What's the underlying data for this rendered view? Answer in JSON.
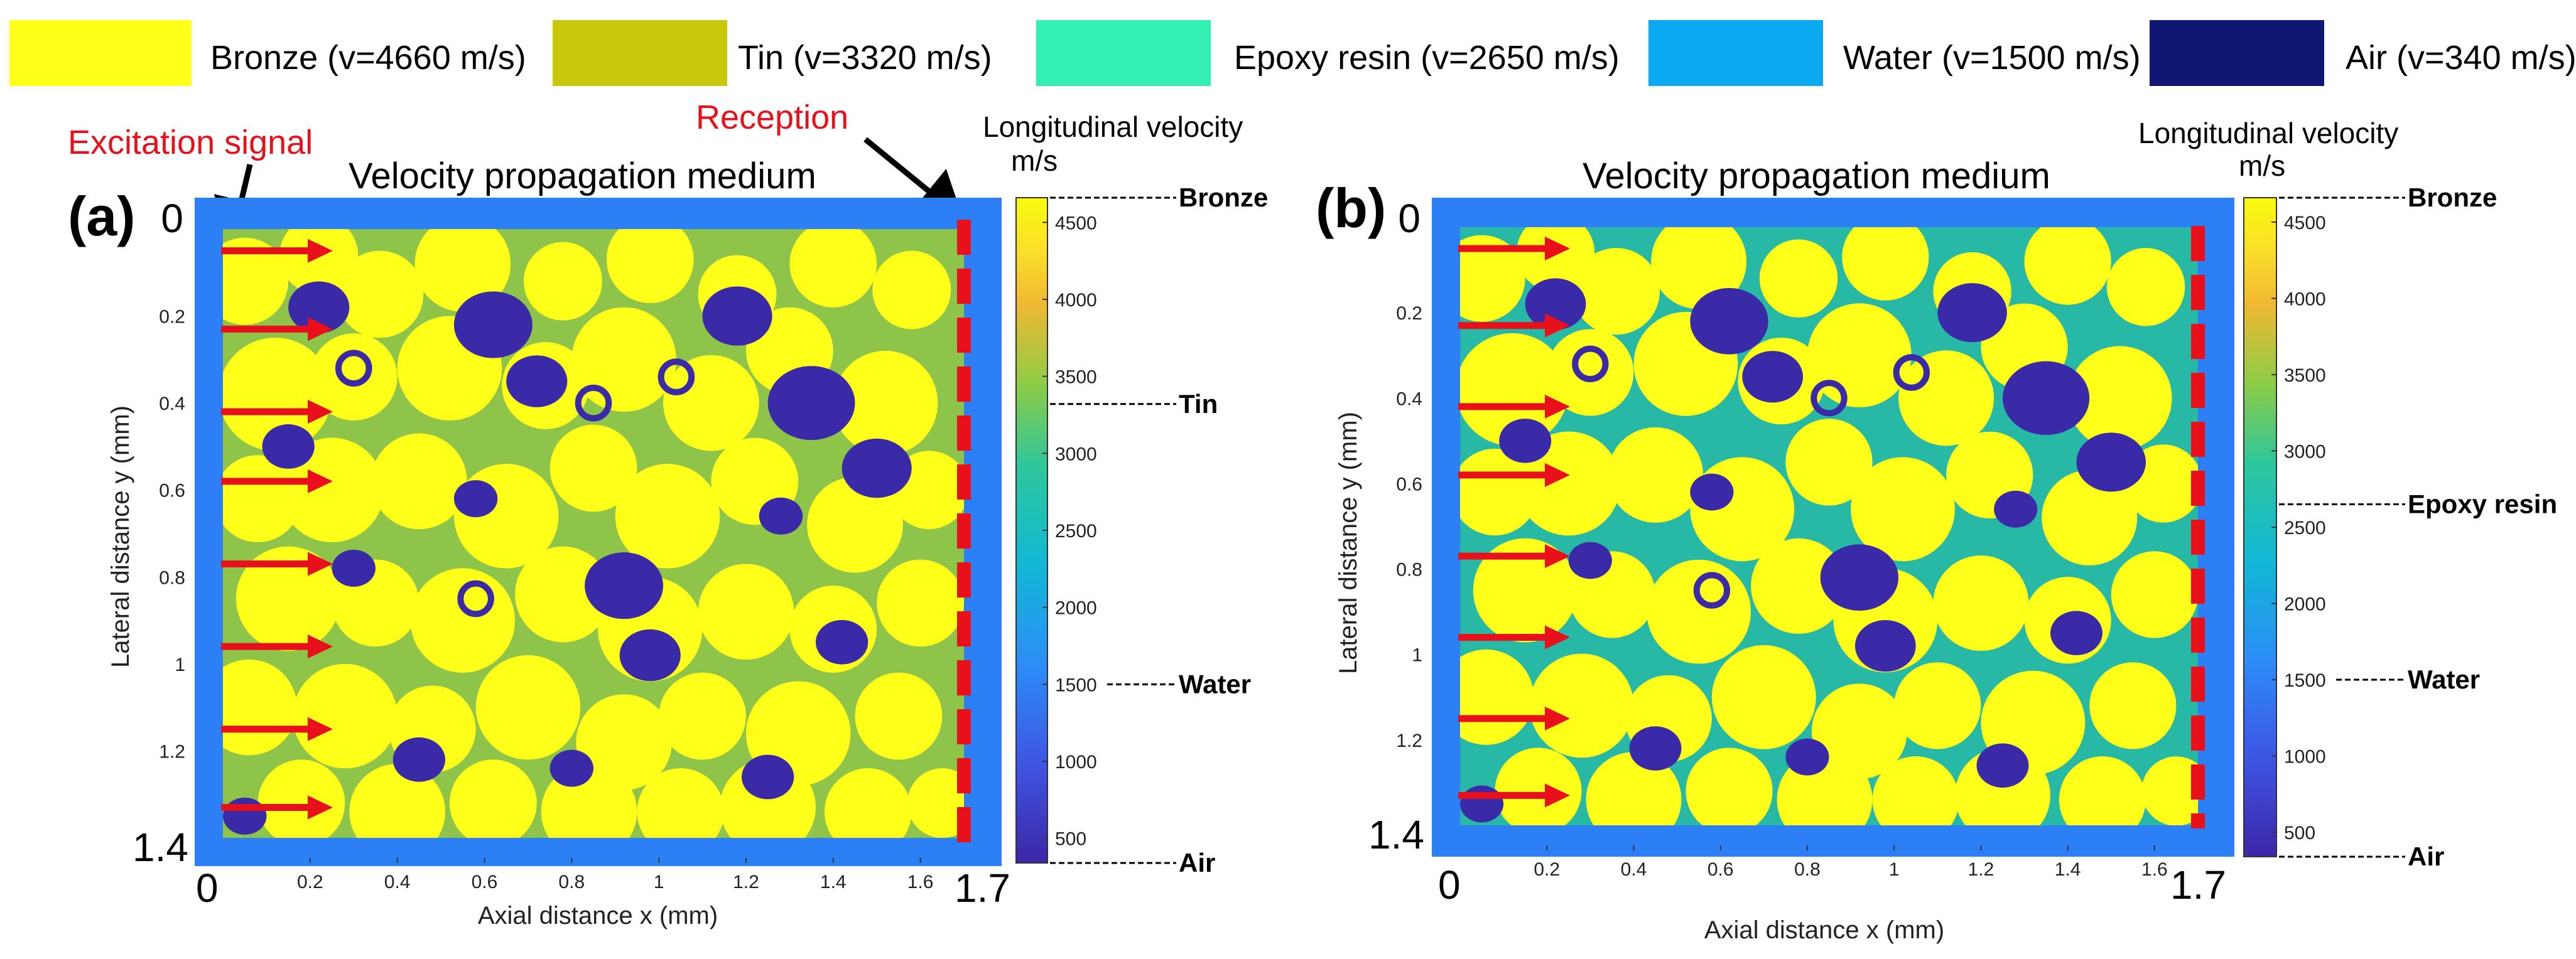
{
  "legend": [
    {
      "label": "Bronze (v=4660 m/s)",
      "color": "#ffff1a"
    },
    {
      "label": "Tin (v=3320 m/s)",
      "color": "#c9c70a"
    },
    {
      "label": "Epoxy resin (v=2650 m/s)",
      "color": "#33efb3"
    },
    {
      "label": "Water (v=1500 m/s)",
      "color": "#0aa9f2"
    },
    {
      "label": "Air (v=340 m/s)",
      "color": "#0f1673"
    }
  ],
  "annotations": {
    "excitation": "Excitation signal",
    "reception": "Reception"
  },
  "chart_data": [
    {
      "type": "heatmap",
      "panel_label": "(a)",
      "title": "Velocity propagation medium",
      "xlabel": "Axial distance x (mm)",
      "ylabel": "Lateral distance y (mm)",
      "xlim": [
        0,
        1.7
      ],
      "ylim": [
        0,
        1.4
      ],
      "x_ticks": [
        "0.2",
        "0.4",
        "0.6",
        "0.8",
        "1",
        "1.2",
        "1.4",
        "1.6"
      ],
      "x_tick_values": [
        0.2,
        0.4,
        0.6,
        0.8,
        1.0,
        1.2,
        1.4,
        1.6
      ],
      "y_ticks": [
        "0.2",
        "0.4",
        "0.6",
        "0.8",
        "1",
        "1.2"
      ],
      "y_tick_values": [
        0.2,
        0.4,
        0.6,
        0.8,
        1.0,
        1.2
      ],
      "x_end_labels": [
        "0",
        "1.7"
      ],
      "y_end_labels": [
        "0",
        "1.4"
      ],
      "matrix_material": "Tin",
      "matrix_color": "#8ec449",
      "colorbar": {
        "title": "Longitudinal velocity",
        "unit": "m/s",
        "range": [
          340,
          4660
        ],
        "ticks": [
          "500",
          "1000",
          "1500",
          "2000",
          "2500",
          "3000",
          "3500",
          "4000",
          "4500"
        ],
        "tick_values": [
          500,
          1000,
          1500,
          2000,
          2500,
          3000,
          3500,
          4000,
          4500
        ],
        "markers": [
          {
            "label": "Bronze",
            "value": 4660
          },
          {
            "label": "Tin",
            "value": 3320
          },
          {
            "label": "Water",
            "value": 1500
          },
          {
            "label": "Air",
            "value": 340
          }
        ]
      },
      "excitation_y": [
        0.05,
        0.23,
        0.42,
        0.58,
        0.77,
        0.96,
        1.15,
        1.33
      ]
    },
    {
      "type": "heatmap",
      "panel_label": "(b)",
      "title": "Velocity propagation medium",
      "xlabel": "Axial distance x (mm)",
      "ylabel": "Lateral distance y (mm)",
      "xlim": [
        0,
        1.7
      ],
      "ylim": [
        0,
        1.4
      ],
      "x_ticks": [
        "0.2",
        "0.4",
        "0.6",
        "0.8",
        "1",
        "1.2",
        "1.4",
        "1.6"
      ],
      "x_tick_values": [
        0.2,
        0.4,
        0.6,
        0.8,
        1.0,
        1.2,
        1.4,
        1.6
      ],
      "y_ticks": [
        "0.2",
        "0.4",
        "0.6",
        "0.8",
        "1",
        "1.2"
      ],
      "y_tick_values": [
        0.2,
        0.4,
        0.6,
        0.8,
        1.0,
        1.2
      ],
      "x_end_labels": [
        "0",
        "1.7"
      ],
      "y_end_labels": [
        "0",
        "1.4"
      ],
      "matrix_material": "Epoxy resin",
      "matrix_color": "#27b8a6",
      "colorbar": {
        "title": "Longitudinal velocity",
        "unit": "m/s",
        "range": [
          340,
          4660
        ],
        "ticks": [
          "500",
          "1000",
          "1500",
          "2000",
          "2500",
          "3000",
          "3500",
          "4000",
          "4500"
        ],
        "tick_values": [
          500,
          1000,
          1500,
          2000,
          2500,
          3000,
          3500,
          4000,
          4500
        ],
        "markers": [
          {
            "label": "Bronze",
            "value": 4660
          },
          {
            "label": "Epoxy resin",
            "value": 2650
          },
          {
            "label": "Water",
            "value": 1500
          },
          {
            "label": "Air",
            "value": 340
          }
        ]
      },
      "excitation_y": [
        0.05,
        0.23,
        0.42,
        0.58,
        0.77,
        0.96,
        1.15,
        1.33
      ]
    }
  ],
  "microstructure": {
    "bronze_particles": [
      [
        0.05,
        0.12,
        0.1
      ],
      [
        0.22,
        0.06,
        0.09
      ],
      [
        0.36,
        0.15,
        0.1
      ],
      [
        0.55,
        0.08,
        0.11
      ],
      [
        0.78,
        0.12,
        0.09
      ],
      [
        0.98,
        0.07,
        0.1
      ],
      [
        1.18,
        0.15,
        0.09
      ],
      [
        1.4,
        0.08,
        0.1
      ],
      [
        1.58,
        0.14,
        0.09
      ],
      [
        0.12,
        0.38,
        0.13
      ],
      [
        0.3,
        0.34,
        0.1
      ],
      [
        0.52,
        0.32,
        0.12
      ],
      [
        0.74,
        0.36,
        0.1
      ],
      [
        0.92,
        0.3,
        0.12
      ],
      [
        1.12,
        0.4,
        0.11
      ],
      [
        1.3,
        0.28,
        0.1
      ],
      [
        1.52,
        0.4,
        0.12
      ],
      [
        0.08,
        0.62,
        0.1
      ],
      [
        0.25,
        0.6,
        0.12
      ],
      [
        0.45,
        0.58,
        0.11
      ],
      [
        0.65,
        0.66,
        0.12
      ],
      [
        0.85,
        0.55,
        0.1
      ],
      [
        1.02,
        0.66,
        0.12
      ],
      [
        1.22,
        0.58,
        0.1
      ],
      [
        1.45,
        0.68,
        0.11
      ],
      [
        1.62,
        0.6,
        0.09
      ],
      [
        0.15,
        0.85,
        0.12
      ],
      [
        0.35,
        0.86,
        0.1
      ],
      [
        0.55,
        0.9,
        0.12
      ],
      [
        0.78,
        0.84,
        0.11
      ],
      [
        0.98,
        0.92,
        0.12
      ],
      [
        1.2,
        0.88,
        0.11
      ],
      [
        1.4,
        0.92,
        0.1
      ],
      [
        1.6,
        0.86,
        0.1
      ],
      [
        0.06,
        1.1,
        0.11
      ],
      [
        0.28,
        1.12,
        0.12
      ],
      [
        0.48,
        1.15,
        0.1
      ],
      [
        0.7,
        1.1,
        0.12
      ],
      [
        0.92,
        1.18,
        0.11
      ],
      [
        1.1,
        1.12,
        0.1
      ],
      [
        1.32,
        1.16,
        0.12
      ],
      [
        1.55,
        1.12,
        0.1
      ],
      [
        0.18,
        1.32,
        0.1
      ],
      [
        0.4,
        1.34,
        0.11
      ],
      [
        0.62,
        1.32,
        0.1
      ],
      [
        0.84,
        1.34,
        0.11
      ],
      [
        1.05,
        1.34,
        0.1
      ],
      [
        1.25,
        1.33,
        0.11
      ],
      [
        1.48,
        1.34,
        0.1
      ],
      [
        1.65,
        1.32,
        0.08
      ]
    ],
    "air_voids": [
      [
        0.22,
        0.18,
        0.07
      ],
      [
        0.62,
        0.22,
        0.09
      ],
      [
        0.72,
        0.35,
        0.07
      ],
      [
        1.18,
        0.2,
        0.08
      ],
      [
        1.35,
        0.4,
        0.1
      ],
      [
        1.5,
        0.55,
        0.08
      ],
      [
        0.15,
        0.5,
        0.06
      ],
      [
        0.3,
        0.78,
        0.05
      ],
      [
        0.92,
        0.82,
        0.09
      ],
      [
        0.98,
        0.98,
        0.07
      ],
      [
        1.42,
        0.95,
        0.06
      ],
      [
        0.45,
        1.22,
        0.06
      ],
      [
        0.8,
        1.24,
        0.05
      ],
      [
        1.25,
        1.26,
        0.06
      ],
      [
        0.58,
        0.62,
        0.05
      ],
      [
        1.28,
        0.66,
        0.05
      ],
      [
        0.05,
        1.35,
        0.05
      ]
    ]
  }
}
